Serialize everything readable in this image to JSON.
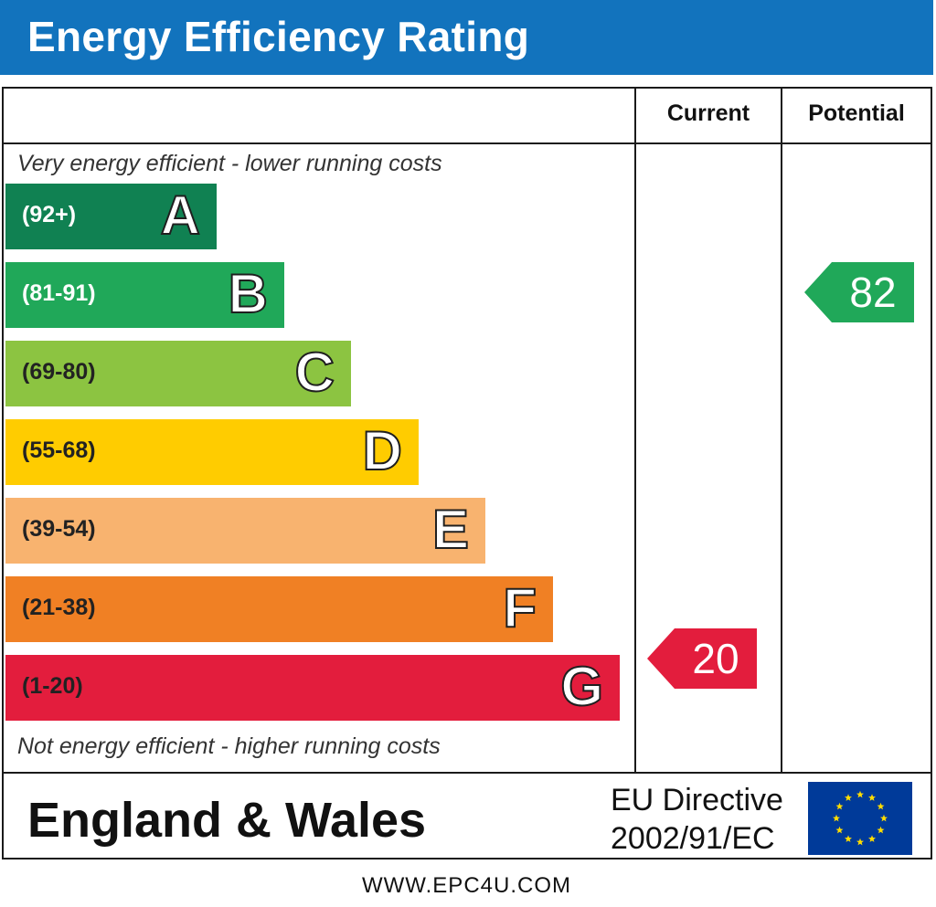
{
  "header": {
    "title": "Energy Efficiency Rating"
  },
  "columns": {
    "current": "Current",
    "potential": "Potential"
  },
  "notes": {
    "top": "Very energy efficient - lower running costs",
    "bottom": "Not energy efficient - higher running costs"
  },
  "chart_data": {
    "type": "bar",
    "title": "Energy Efficiency Rating",
    "categories": [
      "A",
      "B",
      "C",
      "D",
      "E",
      "F",
      "G"
    ],
    "bands": [
      {
        "letter": "A",
        "range": "(92+)",
        "color": "#108152",
        "light": true
      },
      {
        "letter": "B",
        "range": "(81-91)",
        "color": "#20a859",
        "light": true
      },
      {
        "letter": "C",
        "range": "(69-80)",
        "color": "#8cc441",
        "light": false
      },
      {
        "letter": "D",
        "range": "(55-68)",
        "color": "#ffcc00",
        "light": false
      },
      {
        "letter": "E",
        "range": "(39-54)",
        "color": "#f8b36f",
        "light": false
      },
      {
        "letter": "F",
        "range": "(21-38)",
        "color": "#f08024",
        "light": false
      },
      {
        "letter": "G",
        "range": "(1-20)",
        "color": "#e31d3d",
        "light": false
      }
    ],
    "ratings": {
      "current": {
        "value": 20,
        "band": "G",
        "color": "#e31d3d"
      },
      "potential": {
        "value": 82,
        "band": "B",
        "color": "#20a859"
      }
    }
  },
  "footer": {
    "country": "England & Wales",
    "directive_line1": "EU Directive",
    "directive_line2": "2002/91/EC",
    "website": "WWW.EPC4U.COM"
  }
}
